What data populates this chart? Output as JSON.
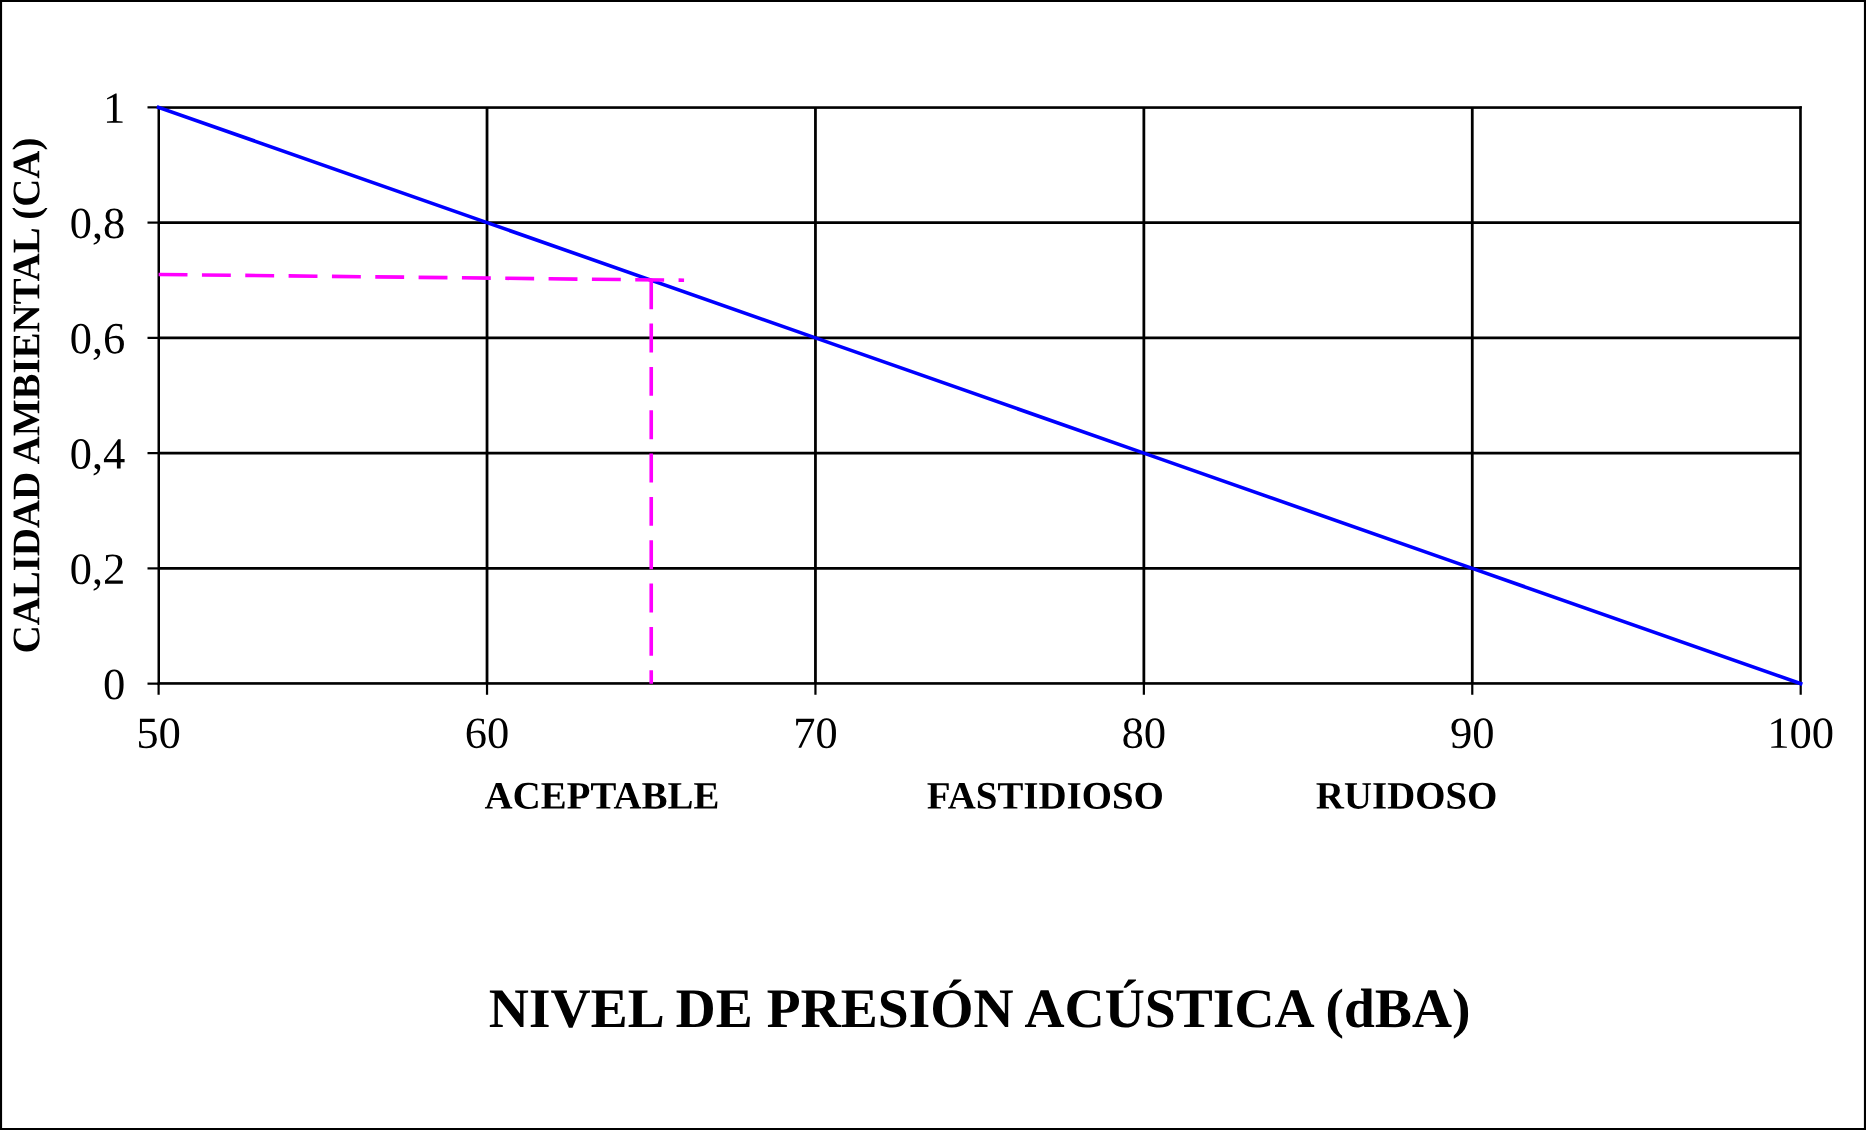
{
  "chart_data": {
    "type": "line",
    "xlabel": "NIVEL DE PRESIÓN ACÚSTICA (dBA)",
    "ylabel": "CALIDAD AMBIENTAL (CA)",
    "series": [
      {
        "x": [
          50,
          60,
          70,
          80,
          90,
          100
        ],
        "values": [
          1,
          0.8,
          0.6,
          0.4,
          0.2,
          0
        ],
        "color": "#0000ff",
        "line_style": "solid"
      },
      {
        "x": [
          50,
          66
        ],
        "values": [
          0.71,
          0.7
        ],
        "color": "#ff00ff",
        "line_style": "dashed"
      },
      {
        "x": [
          65,
          65
        ],
        "values": [
          0.7,
          0
        ],
        "color": "#ff00ff",
        "line_style": "dashed"
      }
    ],
    "xlim": [
      50,
      100
    ],
    "xticks": [
      50,
      60,
      70,
      80,
      90,
      100
    ],
    "ylim": [
      0,
      1
    ],
    "yticks": [
      0,
      {
        "value": 0.2,
        "label": "0,2"
      },
      {
        "value": 0.4,
        "label": "0,4"
      },
      {
        "value": 0.6,
        "label": "0,6"
      },
      {
        "value": 0.8,
        "label": "0,8"
      },
      1
    ],
    "annotations": [
      "ACEPTABLE",
      "FASTIDIOSO",
      "RUIDOSO"
    ],
    "grid": true,
    "marker": "none"
  }
}
